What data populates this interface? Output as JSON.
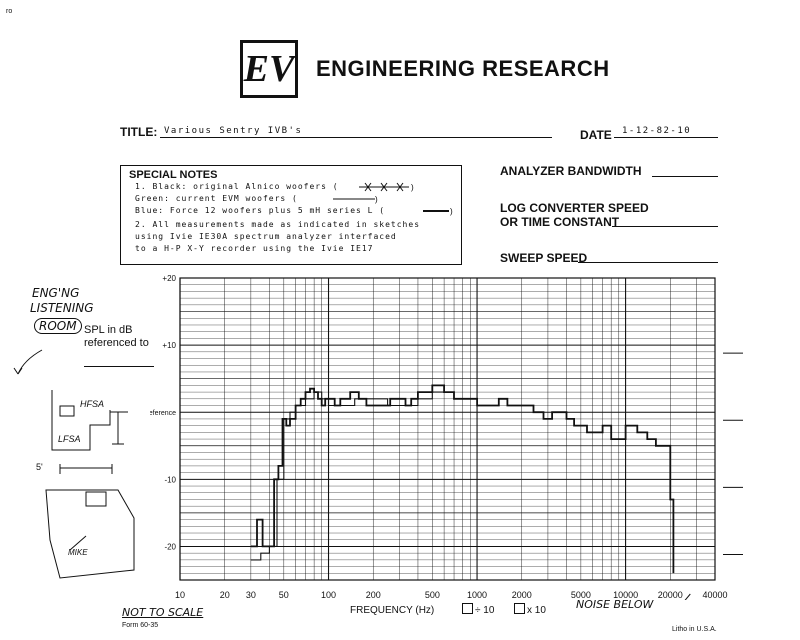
{
  "header": {
    "corner_mark": "ro",
    "logo_text": "EV",
    "company_title": "ENGINEERING RESEARCH"
  },
  "fields": {
    "title_label": "TITLE:",
    "title_value": "Various Sentry IVB's",
    "date_label": "DATE",
    "date_value": "1-12-82-10",
    "analyzer_bandwidth_label": "ANALYZER BANDWIDTH",
    "log_converter_label_1": "LOG CONVERTER SPEED",
    "log_converter_label_2": "OR TIME CONSTANT",
    "sweep_speed_label": "SWEEP SPEED"
  },
  "special_notes": {
    "heading": "SPECIAL NOTES",
    "line1": "1.  Black: original Alnico woofers (",
    "line2": "    Green: current EVM woofers (",
    "line3": "    Blue: Force 12 woofers plus 5 mH series L (",
    "line4": "2.  All measurements made as indicated in sketches",
    "line5": "    using Ivie IE30A spectrum analyzer interfaced",
    "line6": "    to a H-P X-Y recorder using the Ivie IE17"
  },
  "left_panel": {
    "room_label_1": "ENG'NG",
    "room_label_2": "LISTENING",
    "room_label_3": "ROOM",
    "spl_label_1": "SPL in dB",
    "spl_label_2": "referenced to",
    "hfsa": "HFSA",
    "lfsa": "LFSA",
    "five_ft": "5'",
    "mike": "MIKE",
    "not_to_scale": "NOT TO SCALE",
    "form_number": "Form 60-35"
  },
  "footer": {
    "frequency_label": "FREQUENCY (Hz)",
    "option_1": "÷ 10",
    "option_2": "x 10",
    "noise_below": "NOISE BELOW",
    "litho": "Litho in U.S.A."
  },
  "chart_data": {
    "type": "line",
    "xscale": "log",
    "xlim": [
      10,
      40000
    ],
    "ylim": [
      -25,
      20
    ],
    "x_ticks": [
      "10",
      "20",
      "30",
      "50",
      "100",
      "200",
      "500",
      "1000",
      "2000",
      "5000",
      "10000",
      "20000",
      "40000"
    ],
    "y_ticks": [
      "+20",
      "+10",
      "Reference",
      "-10",
      "-20"
    ],
    "ylabel": "SPL in dB referenced to",
    "xlabel": "FREQUENCY (Hz)",
    "series": [
      {
        "x": [
          30,
          33,
          36,
          40,
          43,
          46,
          49,
          52,
          55,
          60,
          65,
          70,
          75,
          80,
          85,
          90,
          95,
          100,
          110,
          120,
          140,
          160,
          180,
          200,
          230,
          260,
          300,
          330,
          360,
          400,
          450,
          500,
          550,
          600,
          650,
          700,
          800,
          900,
          1000,
          1200,
          1400,
          1600,
          2000,
          2400,
          2800,
          3200,
          3600,
          4000,
          4500,
          5000,
          5500,
          6000,
          7000,
          8000,
          9000,
          10000,
          11000,
          12000,
          13000,
          14000,
          16000,
          18000,
          20000,
          21000
        ],
        "y": [
          -20,
          -16,
          -20,
          -20,
          -10,
          -8,
          -1,
          -2,
          -1,
          1,
          2,
          3,
          3.5,
          3,
          2,
          1,
          2,
          2,
          1,
          2,
          3,
          2,
          1,
          1,
          1,
          2,
          2,
          1,
          2,
          3,
          3,
          4,
          4,
          3,
          3,
          2,
          2,
          2,
          1,
          1,
          2,
          1,
          1,
          0,
          -1,
          0,
          0,
          -1,
          -2,
          -2,
          -3,
          -3,
          -2,
          -4,
          -4,
          -2,
          -2,
          -3,
          -3,
          -4,
          -5,
          -5,
          -13,
          -24
        ]
      },
      {
        "x": [
          30,
          35,
          40,
          45,
          50,
          55,
          60,
          70,
          80,
          90,
          100,
          120,
          150,
          200,
          250,
          300,
          400,
          500,
          600,
          700,
          800,
          1000
        ],
        "y": [
          -22,
          -21,
          -20,
          -10,
          -1,
          0,
          1,
          2,
          3,
          2,
          1,
          1,
          2,
          2,
          1,
          1,
          2,
          3,
          3,
          2,
          2,
          1
        ]
      }
    ]
  }
}
